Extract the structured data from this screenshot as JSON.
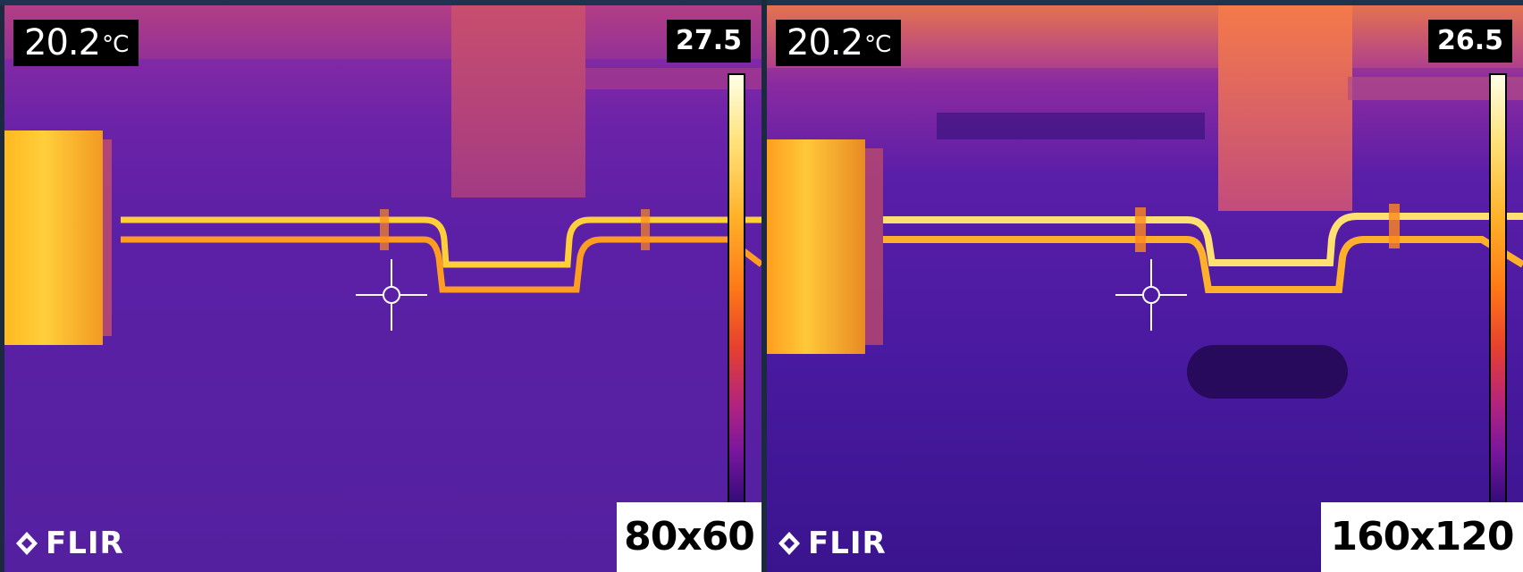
{
  "panels": [
    {
      "spot_value": "20.2",
      "spot_unit": "°C",
      "scale_max": "27.5",
      "resolution": "80x60",
      "brand": "FLIR"
    },
    {
      "spot_value": "20.2",
      "spot_unit": "°C",
      "scale_max": "26.5",
      "resolution": "160x120",
      "brand": "FLIR"
    }
  ],
  "palette": {
    "background": "#5a1fa0",
    "hot": "#ffd84a",
    "warm": "#ff8a1e",
    "cool": "#2a0c6e"
  },
  "icons": {
    "crosshair": "crosshair-icon",
    "logo": "flir-logo-icon"
  }
}
